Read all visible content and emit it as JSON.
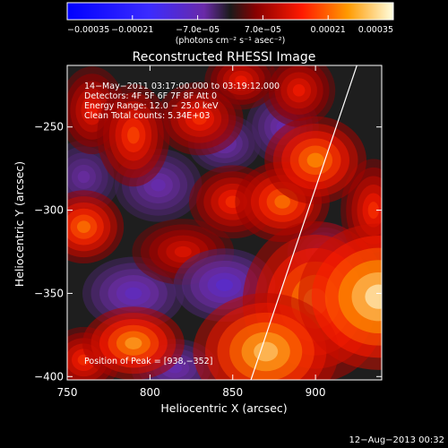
{
  "chart_data": {
    "type": "heatmap",
    "title": "Reconstructed RHESSI Image",
    "xlabel": "Heliocentric X (arcsec)",
    "ylabel": "Heliocentric Y (arcsec)",
    "xlim": [
      750,
      940
    ],
    "ylim": [
      -402,
      -213
    ],
    "x_ticks": [
      "750",
      "800",
      "850",
      "900"
    ],
    "y_ticks": [
      "−400",
      "−350",
      "−300",
      "−250"
    ],
    "x_tick_values": [
      750,
      800,
      850,
      900
    ],
    "y_tick_values": [
      -400,
      -350,
      -300,
      -250
    ],
    "colorbar": {
      "range": [
        -0.00035,
        0.00035
      ],
      "tick_labels": [
        "−0.00035",
        "−0.00021",
        "−7.0e−05",
        "7.0e−05",
        "0.00021",
        "0.00035"
      ],
      "tick_values": [
        -0.00035,
        -0.00021,
        -7e-05,
        7e-05,
        0.00021,
        0.00035
      ],
      "unit_label": "(photons cm⁻² s⁻¹ asec⁻²)"
    },
    "annotations": [
      "14−May−2011 03:17:00.000 to 03:19:12.000",
      "Detectors: 4F 5F 6F 7F 8F  Att 0",
      "Energy Range: 12.0 − 25.0 keV",
      "Clean     Total counts: 5.34E+03",
      "Position of Peak = [938,−352]"
    ],
    "peak": [
      938,
      -352
    ],
    "limb_line": [
      [
        861,
        -402
      ],
      [
        925,
        -213
      ]
    ],
    "blobs": [
      {
        "x": 938,
        "y": -352,
        "value": 1.0,
        "sx": 22,
        "sy": 20
      },
      {
        "x": 900,
        "y": -355,
        "value": 0.8,
        "sx": 20,
        "sy": 22
      },
      {
        "x": 870,
        "y": -385,
        "value": 0.9,
        "sx": 20,
        "sy": 16
      },
      {
        "x": 900,
        "y": -270,
        "value": 0.75,
        "sx": 14,
        "sy": 12
      },
      {
        "x": 880,
        "y": -295,
        "value": 0.7,
        "sx": 13,
        "sy": 11
      },
      {
        "x": 850,
        "y": -295,
        "value": 0.55,
        "sx": 12,
        "sy": 10
      },
      {
        "x": 790,
        "y": -380,
        "value": 0.8,
        "sx": 14,
        "sy": 10
      },
      {
        "x": 760,
        "y": -390,
        "value": 0.55,
        "sx": 10,
        "sy": 9
      },
      {
        "x": 760,
        "y": -310,
        "value": 0.7,
        "sx": 11,
        "sy": 10
      },
      {
        "x": 830,
        "y": -245,
        "value": 0.55,
        "sx": 12,
        "sy": 10
      },
      {
        "x": 790,
        "y": -255,
        "value": 0.6,
        "sx": 10,
        "sy": 14
      },
      {
        "x": 765,
        "y": -240,
        "value": 0.5,
        "sx": 9,
        "sy": 12
      },
      {
        "x": 820,
        "y": -325,
        "value": 0.45,
        "sx": 14,
        "sy": 9
      },
      {
        "x": 855,
        "y": -222,
        "value": 0.5,
        "sx": 10,
        "sy": 8
      },
      {
        "x": 890,
        "y": -228,
        "value": 0.5,
        "sx": 10,
        "sy": 10
      },
      {
        "x": 935,
        "y": -300,
        "value": 0.55,
        "sx": 9,
        "sy": 14
      },
      {
        "x": 790,
        "y": -350,
        "value": -0.4,
        "sx": 14,
        "sy": 10
      },
      {
        "x": 845,
        "y": -345,
        "value": -0.45,
        "sx": 14,
        "sy": 10
      },
      {
        "x": 805,
        "y": -285,
        "value": -0.35,
        "sx": 12,
        "sy": 10
      },
      {
        "x": 845,
        "y": -260,
        "value": -0.35,
        "sx": 10,
        "sy": 8
      },
      {
        "x": 880,
        "y": -250,
        "value": -0.35,
        "sx": 10,
        "sy": 10
      },
      {
        "x": 815,
        "y": -395,
        "value": -0.35,
        "sx": 12,
        "sy": 8
      },
      {
        "x": 760,
        "y": -280,
        "value": -0.3,
        "sx": 10,
        "sy": 10
      },
      {
        "x": 905,
        "y": -325,
        "value": -0.35,
        "sx": 10,
        "sy": 8
      }
    ]
  },
  "footer": {
    "timestamp": "12−Aug−2013 00:32"
  }
}
